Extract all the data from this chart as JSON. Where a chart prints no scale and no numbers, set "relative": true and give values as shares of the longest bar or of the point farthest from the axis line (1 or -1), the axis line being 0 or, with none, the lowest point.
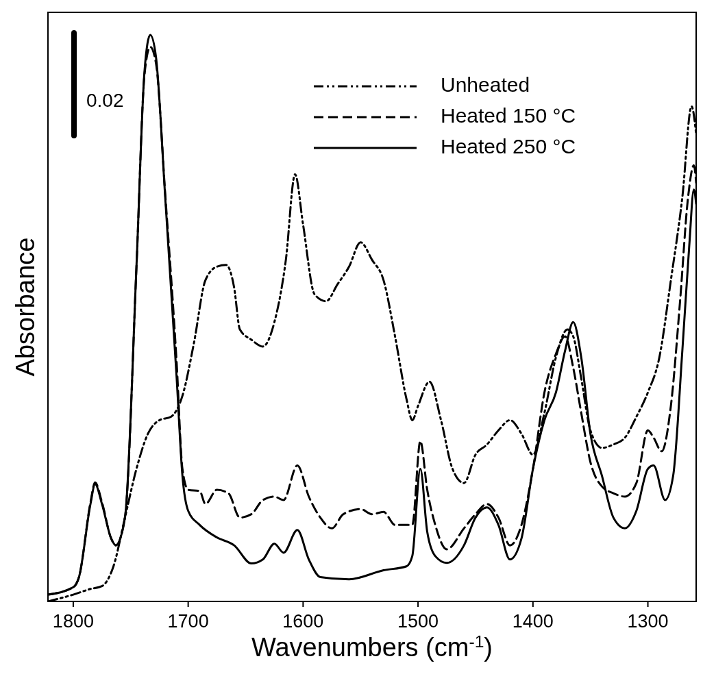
{
  "chart_data": {
    "type": "line",
    "xlabel": "Wavenumbers (cm$^{-1}$)",
    "ylabel": "Absorbance",
    "relative": true,
    "xlim": [
      1822,
      1258
    ],
    "xticks": [
      1800,
      1700,
      1600,
      1500,
      1400,
      1300
    ],
    "legend": "top right",
    "grid": false,
    "annotations": [
      "0.02"
    ],
    "series": [
      {
        "name": "Unheated",
        "color": "#000000",
        "line_style": "dotted",
        "x": [
          1822,
          1800,
          1785,
          1775,
          1765,
          1755,
          1745,
          1735,
          1725,
          1715,
          1705,
          1695,
          1685,
          1675,
          1667,
          1660,
          1655,
          1645,
          1635,
          1625,
          1615,
          1607,
          1600,
          1590,
          1580,
          1570,
          1560,
          1550,
          1540,
          1530,
          1520,
          1510,
          1505,
          1500,
          1490,
          1480,
          1470,
          1460,
          1450,
          1440,
          1430,
          1420,
          1410,
          1400,
          1390,
          1380,
          1370,
          1365,
          1358,
          1350,
          1340,
          1330,
          1320,
          1310,
          1300,
          1290,
          1280,
          1270,
          1262,
          1258
        ],
        "values": [
          0.0,
          0.012,
          0.022,
          0.027,
          0.062,
          0.148,
          0.234,
          0.296,
          0.32,
          0.326,
          0.363,
          0.456,
          0.567,
          0.591,
          0.594,
          0.554,
          0.48,
          0.462,
          0.45,
          0.493,
          0.603,
          0.754,
          0.665,
          0.542,
          0.53,
          0.56,
          0.591,
          0.634,
          0.603,
          0.567,
          0.468,
          0.357,
          0.32,
          0.345,
          0.388,
          0.32,
          0.234,
          0.209,
          0.259,
          0.277,
          0.302,
          0.32,
          0.296,
          0.259,
          0.333,
          0.431,
          0.48,
          0.468,
          0.394,
          0.302,
          0.271,
          0.277,
          0.289,
          0.326,
          0.369,
          0.431,
          0.567,
          0.714,
          0.874,
          0.825
        ]
      },
      {
        "name": "Heated 150 °C",
        "color": "#000000",
        "line_style": "dashed",
        "x": [
          1822,
          1800,
          1795,
          1785,
          1781,
          1775,
          1767,
          1763,
          1755,
          1745,
          1738,
          1733,
          1728,
          1720,
          1710,
          1705,
          1700,
          1690,
          1685,
          1675,
          1665,
          1655,
          1645,
          1635,
          1625,
          1617,
          1605,
          1595,
          1585,
          1575,
          1565,
          1550,
          1540,
          1530,
          1520,
          1505,
          1498,
          1492,
          1485,
          1475,
          1460,
          1450,
          1440,
          1430,
          1420,
          1410,
          1400,
          1390,
          1380,
          1372,
          1365,
          1358,
          1350,
          1340,
          1330,
          1320,
          1310,
          1300,
          1295,
          1288,
          1280,
          1272,
          1265,
          1260,
          1258
        ],
        "values": [
          0.012,
          0.025,
          0.043,
          0.175,
          0.21,
          0.175,
          0.111,
          0.099,
          0.148,
          0.59,
          0.93,
          0.979,
          0.95,
          0.72,
          0.42,
          0.234,
          0.197,
          0.195,
          0.172,
          0.197,
          0.191,
          0.148,
          0.154,
          0.179,
          0.185,
          0.179,
          0.24,
          0.185,
          0.148,
          0.129,
          0.154,
          0.163,
          0.154,
          0.158,
          0.135,
          0.135,
          0.283,
          0.197,
          0.135,
          0.092,
          0.129,
          0.154,
          0.172,
          0.148,
          0.099,
          0.135,
          0.234,
          0.369,
          0.437,
          0.468,
          0.413,
          0.333,
          0.246,
          0.203,
          0.191,
          0.185,
          0.209,
          0.302,
          0.289,
          0.265,
          0.345,
          0.53,
          0.714,
          0.77,
          0.739
        ]
      },
      {
        "name": "Heated 250 °C",
        "color": "#000000",
        "line_style": "solid",
        "x": [
          1822,
          1800,
          1795,
          1785,
          1781,
          1775,
          1767,
          1763,
          1755,
          1745,
          1738,
          1733,
          1728,
          1720,
          1710,
          1705,
          1700,
          1690,
          1675,
          1660,
          1645,
          1635,
          1625,
          1617,
          1605,
          1595,
          1585,
          1560,
          1530,
          1510,
          1505,
          1498,
          1492,
          1485,
          1475,
          1460,
          1450,
          1440,
          1430,
          1420,
          1410,
          1400,
          1390,
          1380,
          1372,
          1365,
          1358,
          1350,
          1340,
          1330,
          1320,
          1310,
          1300,
          1295,
          1285,
          1278,
          1270,
          1264,
          1260,
          1258
        ],
        "values": [
          0.012,
          0.025,
          0.043,
          0.172,
          0.207,
          0.172,
          0.111,
          0.099,
          0.148,
          0.591,
          0.936,
          1.0,
          0.961,
          0.714,
          0.394,
          0.222,
          0.16,
          0.135,
          0.113,
          0.099,
          0.067,
          0.074,
          0.102,
          0.086,
          0.126,
          0.074,
          0.043,
          0.039,
          0.055,
          0.062,
          0.08,
          0.234,
          0.123,
          0.08,
          0.068,
          0.099,
          0.148,
          0.166,
          0.135,
          0.074,
          0.111,
          0.234,
          0.32,
          0.369,
          0.443,
          0.493,
          0.431,
          0.296,
          0.222,
          0.148,
          0.129,
          0.16,
          0.234,
          0.24,
          0.179,
          0.222,
          0.443,
          0.628,
          0.727,
          0.702
        ]
      }
    ]
  }
}
